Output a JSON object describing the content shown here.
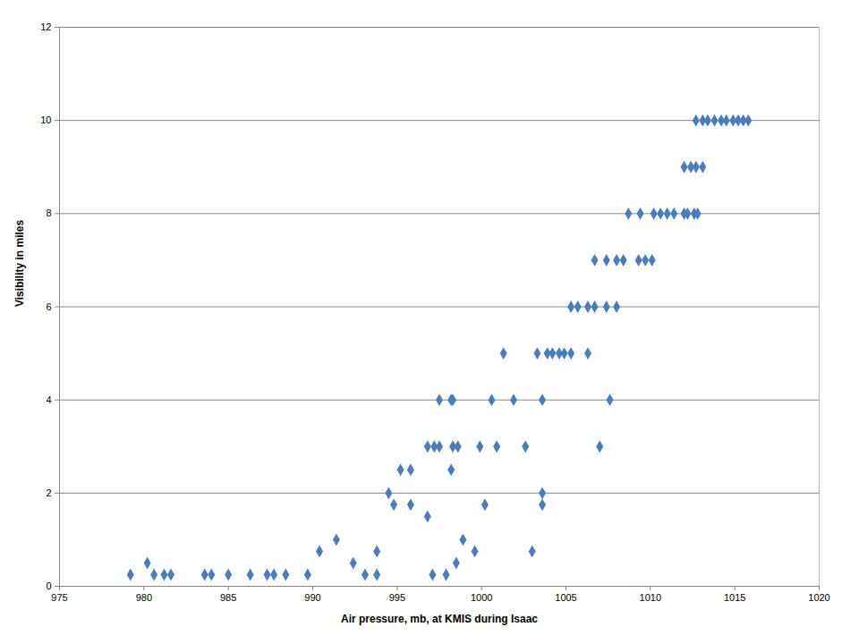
{
  "chart_data": {
    "type": "scatter",
    "x_label": "Air pressure, mb, at KMIS during Isaac",
    "y_label": "Visibility in miles",
    "x": [
      979.2,
      980.6,
      981.2,
      981.6,
      983.6,
      984.0,
      985.0,
      986.3,
      987.3,
      987.7,
      988.4,
      989.7,
      993.1,
      993.8,
      997.1,
      997.9,
      980.2,
      992.4,
      998.5,
      990.4,
      993.8,
      999.6,
      1003.0,
      991.4,
      998.9,
      996.8,
      994.8,
      995.8,
      1000.2,
      1003.6,
      994.5,
      1003.6,
      995.2,
      995.8,
      998.2,
      996.8,
      997.2,
      997.5,
      998.3,
      998.6,
      999.9,
      1000.9,
      1002.6,
      1007.0,
      997.5,
      998.2,
      998.3,
      1000.6,
      1001.9,
      1003.6,
      1007.6,
      1001.3,
      1003.3,
      1003.9,
      1004.2,
      1004.6,
      1004.9,
      1005.3,
      1006.3,
      1005.3,
      1005.7,
      1006.3,
      1006.7,
      1007.4,
      1008.0,
      1006.7,
      1007.4,
      1008.0,
      1008.4,
      1009.3,
      1009.7,
      1010.1,
      1008.7,
      1009.4,
      1010.2,
      1010.6,
      1011.0,
      1011.4,
      1012.0,
      1012.2,
      1012.6,
      1012.8,
      1012.0,
      1012.4,
      1012.7,
      1013.1,
      1012.7,
      1013.1,
      1013.4,
      1013.8,
      1014.2,
      1014.5,
      1014.9,
      1015.2,
      1015.5,
      1015.8
    ],
    "values": [
      0.25,
      0.25,
      0.25,
      0.25,
      0.25,
      0.25,
      0.25,
      0.25,
      0.25,
      0.25,
      0.25,
      0.25,
      0.25,
      0.25,
      0.25,
      0.25,
      0.5,
      0.5,
      0.5,
      0.75,
      0.75,
      0.75,
      0.75,
      1,
      1,
      1.5,
      1.75,
      1.75,
      1.75,
      1.75,
      2,
      2,
      2.5,
      2.5,
      2.5,
      3,
      3,
      3,
      3,
      3,
      3,
      3,
      3,
      3,
      4,
      4,
      4,
      4,
      4,
      4,
      4,
      5,
      5,
      5,
      5,
      5,
      5,
      5,
      5,
      6,
      6,
      6,
      6,
      6,
      6,
      7,
      7,
      7,
      7,
      7,
      7,
      7,
      8,
      8,
      8,
      8,
      8,
      8,
      8,
      8,
      8,
      8,
      9,
      9,
      9,
      9,
      10,
      10,
      10,
      10,
      10,
      10,
      10,
      10,
      10,
      10
    ],
    "color": "#4a7ebb",
    "marker": "diamond",
    "xlim": [
      975,
      1020
    ],
    "xticks": [
      975,
      980,
      985,
      990,
      995,
      1000,
      1005,
      1010,
      1015,
      1020
    ],
    "ylim": [
      0,
      12
    ],
    "yticks": [
      0,
      2,
      4,
      6,
      8,
      10,
      12
    ],
    "grid": true
  }
}
